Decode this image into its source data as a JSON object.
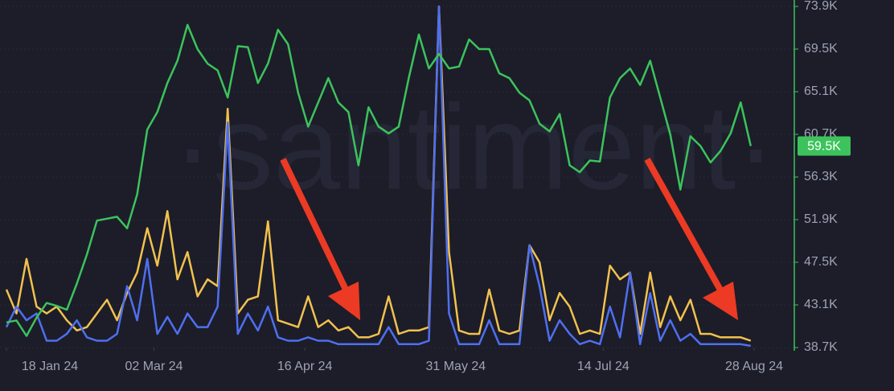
{
  "chart_data": {
    "type": "line",
    "watermark": "·santiment·",
    "x": [
      "2024-01-18",
      "2024-01-21",
      "2024-01-24",
      "2024-01-27",
      "2024-01-30",
      "2024-02-02",
      "2024-02-05",
      "2024-02-08",
      "2024-02-11",
      "2024-02-14",
      "2024-02-17",
      "2024-02-20",
      "2024-02-23",
      "2024-02-26",
      "2024-02-29",
      "2024-03-03",
      "2024-03-06",
      "2024-03-09",
      "2024-03-12",
      "2024-03-15",
      "2024-03-18",
      "2024-03-21",
      "2024-03-24",
      "2024-03-27",
      "2024-03-30",
      "2024-04-02",
      "2024-04-05",
      "2024-04-08",
      "2024-04-11",
      "2024-04-14",
      "2024-04-17",
      "2024-04-20",
      "2024-04-23",
      "2024-04-26",
      "2024-04-29",
      "2024-05-02",
      "2024-05-05",
      "2024-05-08",
      "2024-05-11",
      "2024-05-14",
      "2024-05-17",
      "2024-05-20",
      "2024-05-23",
      "2024-05-26",
      "2024-05-29",
      "2024-06-01",
      "2024-06-04",
      "2024-06-07",
      "2024-06-10",
      "2024-06-13",
      "2024-06-16",
      "2024-06-19",
      "2024-06-22",
      "2024-06-25",
      "2024-06-28",
      "2024-07-01",
      "2024-07-04",
      "2024-07-07",
      "2024-07-10",
      "2024-07-13",
      "2024-07-16",
      "2024-07-19",
      "2024-07-22",
      "2024-07-25",
      "2024-07-28",
      "2024-07-31",
      "2024-08-03",
      "2024-08-06",
      "2024-08-09",
      "2024-08-12",
      "2024-08-15",
      "2024-08-18",
      "2024-08-21",
      "2024-08-24",
      "2024-08-27"
    ],
    "xlim": [
      "2024-01-18",
      "2024-08-28"
    ],
    "xticks": [
      {
        "value": "2024-01-18",
        "label": "18 Jan 24"
      },
      {
        "value": "2024-03-02",
        "label": "02 Mar 24"
      },
      {
        "value": "2024-04-16",
        "label": "16 Apr 24"
      },
      {
        "value": "2024-05-31",
        "label": "31 May 24"
      },
      {
        "value": "2024-07-14",
        "label": "14 Jul 24"
      },
      {
        "value": "2024-08-28",
        "label": "28 Aug 24"
      }
    ],
    "ylim": [
      38700,
      73900
    ],
    "yticks": [
      {
        "value": 73900,
        "label": "73.9K"
      },
      {
        "value": 69500,
        "label": "69.5K"
      },
      {
        "value": 65100,
        "label": "65.1K"
      },
      {
        "value": 60700,
        "label": "60.7K"
      },
      {
        "value": 56300,
        "label": "56.3K"
      },
      {
        "value": 51900,
        "label": "51.9K"
      },
      {
        "value": 47500,
        "label": "47.5K"
      },
      {
        "value": 43100,
        "label": "43.1K"
      },
      {
        "value": 38700,
        "label": "38.7K"
      }
    ],
    "y2lim": [
      0,
      100
    ],
    "grid": true,
    "series": [
      {
        "color": "#f2c14e",
        "axis": "y2",
        "values": [
          17,
          10,
          26,
          12,
          10,
          12,
          8,
          5,
          6,
          10,
          14,
          8,
          16,
          22,
          35,
          24,
          40,
          20,
          28,
          15,
          20,
          18,
          70,
          10,
          14,
          15,
          37,
          8,
          7,
          6,
          15,
          6,
          8,
          5,
          6,
          3,
          3,
          4,
          15,
          4,
          5,
          5,
          6,
          100,
          28,
          5,
          4,
          4,
          17,
          5,
          4,
          5,
          30,
          25,
          8,
          16,
          12,
          4,
          5,
          4,
          24,
          20,
          22,
          4,
          22,
          6,
          15,
          8,
          14,
          4,
          4,
          3,
          3,
          3,
          2
        ]
      },
      {
        "color": "#4f6ff0",
        "axis": "y2",
        "values": [
          6,
          12,
          8,
          10,
          2,
          2,
          4,
          8,
          3,
          2,
          2,
          4,
          18,
          8,
          26,
          4,
          9,
          4,
          10,
          6,
          6,
          12,
          66,
          4,
          10,
          5,
          12,
          3,
          2,
          2,
          3,
          2,
          2,
          1,
          1,
          1,
          1,
          1,
          6,
          1,
          1,
          1,
          2,
          100,
          10,
          1,
          1,
          1,
          8,
          1,
          1,
          1,
          30,
          18,
          2,
          8,
          4,
          1,
          2,
          1,
          12,
          3,
          22,
          1,
          16,
          2,
          8,
          2,
          4,
          1,
          1,
          1,
          1,
          1,
          0.5
        ]
      },
      {
        "color": "#3cc35c",
        "values": [
          41300,
          41500,
          39900,
          41800,
          43300,
          43000,
          42600,
          45300,
          48300,
          51800,
          52000,
          52200,
          51000,
          54500,
          61200,
          63000,
          66000,
          68300,
          72000,
          69500,
          68000,
          67300,
          64500,
          69800,
          69700,
          66000,
          68000,
          71500,
          70000,
          65000,
          61500,
          64000,
          66500,
          64000,
          63000,
          57500,
          63500,
          61500,
          60800,
          61500,
          66500,
          71000,
          67500,
          69000,
          67500,
          67700,
          70500,
          69500,
          69500,
          67000,
          66500,
          65000,
          64200,
          61800,
          61000,
          62800,
          57500,
          56800,
          58000,
          57900,
          64500,
          66500,
          67500,
          65800,
          68300,
          64500,
          60700,
          55000,
          60500,
          59500,
          57800,
          59000,
          60800,
          64000,
          59500
        ],
        "value_labels": [
          null,
          null,
          null,
          null,
          null,
          null,
          null,
          null,
          null,
          null,
          null,
          null,
          null,
          null,
          null,
          null,
          null,
          null,
          null,
          null,
          null,
          null,
          null,
          null,
          null,
          null,
          null,
          null,
          null,
          null,
          null,
          null,
          null,
          null,
          null,
          null,
          null,
          null,
          null,
          null,
          null,
          null,
          null,
          null,
          null,
          null,
          null,
          null,
          null,
          null,
          null,
          null,
          null,
          null,
          null,
          null,
          null,
          null,
          null,
          null,
          null,
          null,
          null,
          null,
          null,
          null,
          null,
          null,
          null,
          null,
          null,
          null,
          null,
          null,
          "59.5K"
        ]
      }
    ]
  }
}
